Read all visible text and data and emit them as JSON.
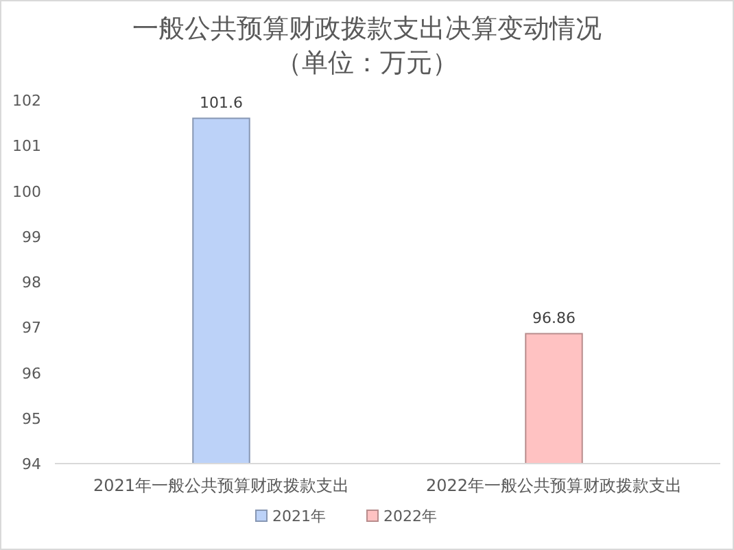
{
  "chart_data": {
    "type": "bar",
    "title": "一般公共预算财政拨款支出决算变动情况",
    "subtitle": "（单位：万元）",
    "categories": [
      "2021年一般公共预算财政拨款支出",
      "2022年一般公共预算财政拨款支出"
    ],
    "series": [
      {
        "name": "2021年",
        "color": "#bcd2f8",
        "values": [
          101.6,
          null
        ]
      },
      {
        "name": "2022年",
        "color": "#ffc2c2",
        "values": [
          null,
          96.86
        ]
      }
    ],
    "ylim": [
      94,
      102
    ],
    "yticks": [
      94,
      95,
      96,
      97,
      98,
      99,
      100,
      101,
      102
    ],
    "data_labels": true,
    "legend": "bottom",
    "grid": false
  }
}
